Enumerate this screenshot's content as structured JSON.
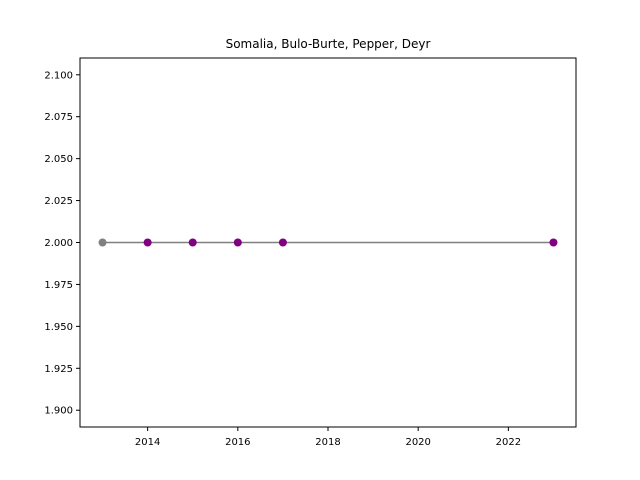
{
  "chart_data": {
    "type": "line",
    "title": "Somalia, Bulo-Burte, Pepper, Deyr",
    "xlabel": "",
    "ylabel": "",
    "xlim": [
      2012.5,
      2023.5
    ],
    "ylim": [
      1.89,
      2.11
    ],
    "xticks": [
      2014,
      2016,
      2018,
      2020,
      2022
    ],
    "yticks": [
      "1.900",
      "1.925",
      "1.950",
      "1.975",
      "2.000",
      "2.025",
      "2.050",
      "2.075",
      "2.100"
    ],
    "grid": false,
    "line_color": "#808080",
    "series": [
      {
        "x": [
          2013,
          2014,
          2015,
          2016,
          2017,
          2023
        ],
        "y": [
          2.0,
          2.0,
          2.0,
          2.0,
          2.0,
          2.0
        ],
        "point_colors": [
          "#808080",
          "#800080",
          "#800080",
          "#800080",
          "#800080",
          "#800080"
        ]
      }
    ]
  }
}
